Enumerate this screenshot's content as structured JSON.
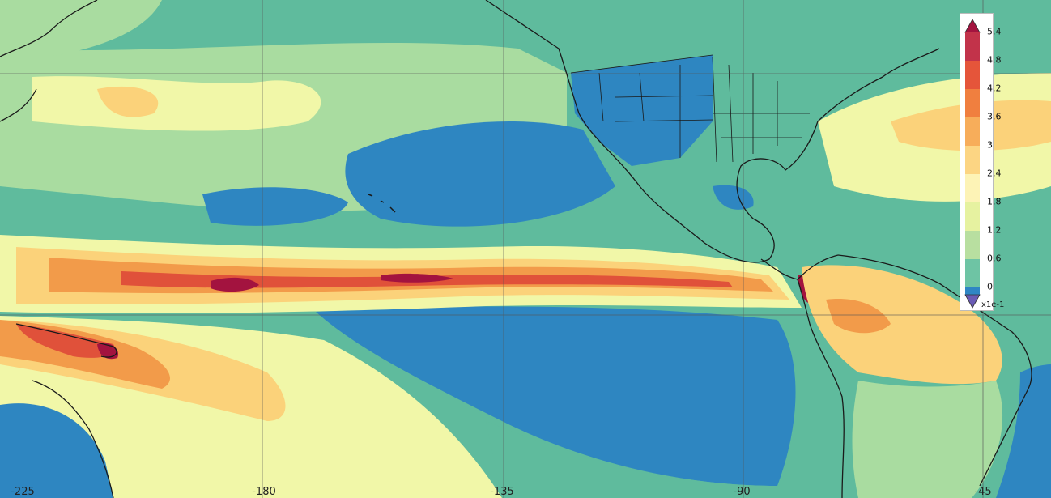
{
  "map": {
    "longitude_labels": [
      "-225",
      "-180",
      "-135",
      "-90",
      "-45"
    ],
    "colors": {
      "ocean_dry": "#2e86c1",
      "low": "#4fb39c",
      "mid_low": "#a9dca0",
      "mid": "#f1f7a8",
      "mid_high": "#fbd27a",
      "high": "#f29b4a",
      "very_high": "#e0513a",
      "max": "#a3133f",
      "coastline": "#1a1a1a",
      "grid": "#555555"
    }
  },
  "legend": {
    "ticks": [
      "5.4",
      "4.8",
      "4.2",
      "3.6",
      "3",
      "2.4",
      "1.8",
      "1.2",
      "0.6",
      "0"
    ],
    "unit": "x1e-1",
    "bin_colors": [
      "#c2334a",
      "#e5553a",
      "#f07f3f",
      "#f7ad5a",
      "#fcd583",
      "#fdf3b6",
      "#e6f2a0",
      "#b8dfa0",
      "#6ec4a4",
      "#2f86c4"
    ],
    "over_color": "#a3133f",
    "under_color": "#6a5bb5"
  }
}
